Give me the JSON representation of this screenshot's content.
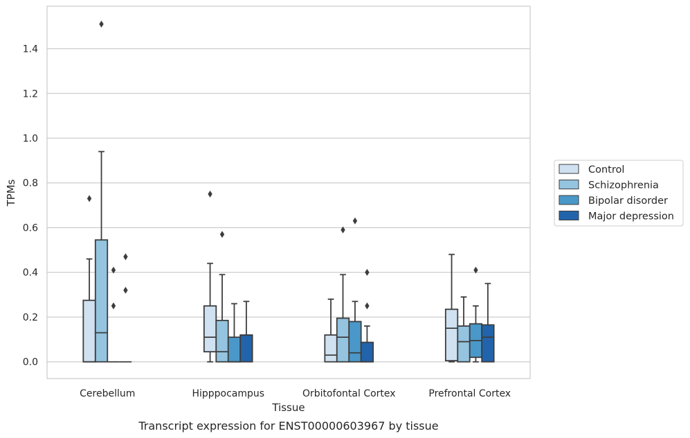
{
  "chart_data": {
    "type": "box",
    "title": "",
    "caption": "Transcript expression for ENST00000603967 by tissue",
    "xlabel": "Tissue",
    "ylabel": "TPMs",
    "ylim": [
      -0.075,
      1.59
    ],
    "yticks": [
      0.0,
      0.2,
      0.4,
      0.6,
      0.8,
      1.0,
      1.2,
      1.4
    ],
    "ytick_labels": [
      "0.0",
      "0.2",
      "0.4",
      "0.6",
      "0.8",
      "1.0",
      "1.2",
      "1.4"
    ],
    "grid": "horizontal",
    "legend_position": "right",
    "categories": [
      "Cerebellum",
      "Hipppocampus",
      "Orbitofontal Cortex",
      "Prefrontal Cortex"
    ],
    "series": [
      {
        "name": "Control",
        "color": "#d0e1f1",
        "boxes": [
          {
            "whisker_low": 0.0,
            "q1": 0.0,
            "median": 0.0,
            "q3": 0.275,
            "whisker_high": 0.46,
            "outliers": [
              0.73
            ]
          },
          {
            "whisker_low": 0.0,
            "q1": 0.045,
            "median": 0.11,
            "q3": 0.25,
            "whisker_high": 0.44,
            "outliers": [
              0.75
            ]
          },
          {
            "whisker_low": 0.0,
            "q1": 0.0,
            "median": 0.03,
            "q3": 0.12,
            "whisker_high": 0.28,
            "outliers": []
          },
          {
            "whisker_low": 0.0,
            "q1": 0.005,
            "median": 0.15,
            "q3": 0.235,
            "whisker_high": 0.48,
            "outliers": []
          }
        ]
      },
      {
        "name": "Schizophrenia",
        "color": "#94c4df",
        "boxes": [
          {
            "whisker_low": 0.0,
            "q1": 0.0,
            "median": 0.13,
            "q3": 0.545,
            "whisker_high": 0.94,
            "outliers": [
              1.51
            ]
          },
          {
            "whisker_low": 0.0,
            "q1": 0.0,
            "median": 0.045,
            "q3": 0.185,
            "whisker_high": 0.39,
            "outliers": [
              0.57
            ]
          },
          {
            "whisker_low": 0.0,
            "q1": 0.0,
            "median": 0.11,
            "q3": 0.195,
            "whisker_high": 0.39,
            "outliers": [
              0.59
            ]
          },
          {
            "whisker_low": 0.0,
            "q1": 0.0,
            "median": 0.09,
            "q3": 0.16,
            "whisker_high": 0.29,
            "outliers": []
          }
        ]
      },
      {
        "name": "Bipolar disorder",
        "color": "#4a98c9",
        "boxes": [
          {
            "whisker_low": 0.0,
            "q1": 0.0,
            "median": 0.0,
            "q3": 0.0,
            "whisker_high": 0.0,
            "outliers": [
              0.41,
              0.25
            ]
          },
          {
            "whisker_low": 0.0,
            "q1": 0.0,
            "median": 0.0,
            "q3": 0.11,
            "whisker_high": 0.26,
            "outliers": []
          },
          {
            "whisker_low": 0.0,
            "q1": 0.0,
            "median": 0.04,
            "q3": 0.18,
            "whisker_high": 0.27,
            "outliers": [
              0.63
            ]
          },
          {
            "whisker_low": 0.0,
            "q1": 0.02,
            "median": 0.095,
            "q3": 0.17,
            "whisker_high": 0.25,
            "outliers": [
              0.41
            ]
          }
        ]
      },
      {
        "name": "Major depression",
        "color": "#2164ab",
        "boxes": [
          {
            "whisker_low": 0.0,
            "q1": 0.0,
            "median": 0.0,
            "q3": 0.0,
            "whisker_high": 0.0,
            "outliers": [
              0.47,
              0.32
            ]
          },
          {
            "whisker_low": 0.0,
            "q1": 0.0,
            "median": 0.12,
            "q3": 0.12,
            "whisker_high": 0.27,
            "outliers": []
          },
          {
            "whisker_low": 0.0,
            "q1": 0.0,
            "median": 0.0,
            "q3": 0.087,
            "whisker_high": 0.16,
            "outliers": [
              0.4,
              0.25
            ]
          },
          {
            "whisker_low": 0.0,
            "q1": 0.0,
            "median": 0.11,
            "q3": 0.165,
            "whisker_high": 0.35,
            "outliers": []
          }
        ]
      }
    ]
  }
}
